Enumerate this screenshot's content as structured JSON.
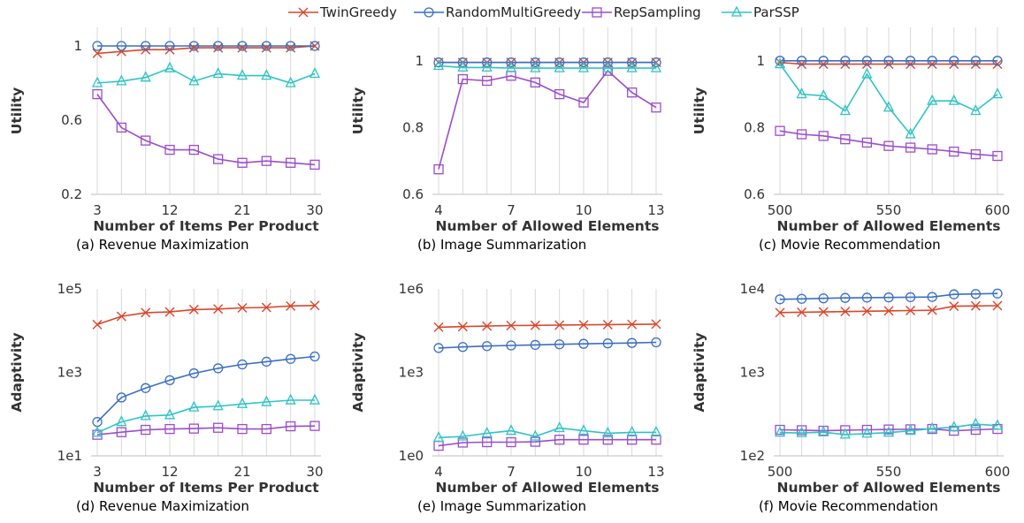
{
  "legend": {
    "position": "top-center",
    "entries": [
      {
        "name": "TwinGreedy",
        "color": "#d9472b",
        "marker": "x"
      },
      {
        "name": "RandomMultiGreedy",
        "color": "#3a6fc4",
        "marker": "circle"
      },
      {
        "name": "RepSampling",
        "color": "#9b4dca",
        "marker": "square"
      },
      {
        "name": "ParSSP",
        "color": "#2ec4c4",
        "marker": "triangle"
      }
    ]
  },
  "chart_data": [
    {
      "type": "line",
      "caption": "(a) Revenue Maximization",
      "xlabel": "Number of Items Per Product",
      "ylabel": "Utility",
      "x": [
        3,
        6,
        9,
        12,
        15,
        18,
        21,
        24,
        27,
        30
      ],
      "xticks": [
        3,
        12,
        21,
        30
      ],
      "xtick_labels": [
        "3",
        "12",
        "21",
        "30"
      ],
      "ylim": [
        0.2,
        1.1
      ],
      "yscale": "linear",
      "yticks": [
        0.2,
        0.6,
        1.0
      ],
      "ytick_labels": [
        "0.2",
        "0.6",
        "1"
      ],
      "grid": "vertical",
      "series": [
        {
          "name": "TwinGreedy",
          "values": [
            0.96,
            0.97,
            0.98,
            0.98,
            0.99,
            0.99,
            0.99,
            0.99,
            0.99,
            1.0
          ]
        },
        {
          "name": "RandomMultiGreedy",
          "values": [
            1.0,
            1.0,
            1.0,
            1.0,
            1.0,
            1.0,
            1.0,
            1.0,
            1.0,
            1.0
          ]
        },
        {
          "name": "RepSampling",
          "values": [
            0.74,
            0.56,
            0.49,
            0.44,
            0.44,
            0.39,
            0.37,
            0.38,
            0.37,
            0.36
          ]
        },
        {
          "name": "ParSSP",
          "values": [
            0.8,
            0.81,
            0.83,
            0.88,
            0.81,
            0.85,
            0.84,
            0.84,
            0.8,
            0.85
          ]
        }
      ]
    },
    {
      "type": "line",
      "caption": "(b) Image Summarization",
      "xlabel": "Number of Allowed Elements",
      "ylabel": "Utility",
      "x": [
        4,
        5,
        6,
        7,
        8,
        9,
        10,
        11,
        12,
        13
      ],
      "xticks": [
        4,
        7,
        10,
        13
      ],
      "xtick_labels": [
        "4",
        "7",
        "10",
        "13"
      ],
      "ylim": [
        0.6,
        1.1
      ],
      "yscale": "linear",
      "yticks": [
        0.6,
        0.8,
        1.0
      ],
      "ytick_labels": [
        "0.6",
        "0.8",
        "1"
      ],
      "grid": "vertical",
      "series": [
        {
          "name": "TwinGreedy",
          "values": [
            0.995,
            0.995,
            0.995,
            0.995,
            0.995,
            0.995,
            0.995,
            0.995,
            0.995,
            0.995
          ]
        },
        {
          "name": "RandomMultiGreedy",
          "values": [
            0.995,
            0.995,
            0.995,
            0.995,
            0.995,
            0.995,
            0.995,
            0.995,
            0.995,
            0.995
          ]
        },
        {
          "name": "RepSampling",
          "values": [
            0.675,
            0.945,
            0.94,
            0.955,
            0.935,
            0.9,
            0.875,
            0.97,
            0.905,
            0.86
          ]
        },
        {
          "name": "ParSSP",
          "values": [
            0.985,
            0.98,
            0.98,
            0.978,
            0.978,
            0.978,
            0.978,
            0.978,
            0.978,
            0.978
          ]
        }
      ]
    },
    {
      "type": "line",
      "caption": "(c) Movie Recommendation",
      "xlabel": "Number of Allowed Elements",
      "ylabel": "Utility",
      "x": [
        500,
        510,
        520,
        530,
        540,
        550,
        560,
        570,
        580,
        590,
        600
      ],
      "xticks": [
        500,
        550,
        600
      ],
      "xtick_labels": [
        "500",
        "550",
        "600"
      ],
      "ylim": [
        0.6,
        1.1
      ],
      "yscale": "linear",
      "yticks": [
        0.6,
        0.8,
        1.0
      ],
      "ytick_labels": [
        "0.6",
        "0.8",
        "1"
      ],
      "grid": "vertical",
      "series": [
        {
          "name": "TwinGreedy",
          "values": [
            0.995,
            0.99,
            0.99,
            0.99,
            0.99,
            0.99,
            0.99,
            0.99,
            0.99,
            0.99,
            0.99
          ]
        },
        {
          "name": "RandomMultiGreedy",
          "values": [
            1.0,
            1.0,
            1.0,
            1.0,
            1.0,
            1.0,
            1.0,
            1.0,
            1.0,
            1.0,
            1.0
          ]
        },
        {
          "name": "RepSampling",
          "values": [
            0.79,
            0.78,
            0.775,
            0.765,
            0.755,
            0.745,
            0.74,
            0.735,
            0.728,
            0.72,
            0.715
          ]
        },
        {
          "name": "ParSSP",
          "values": [
            0.99,
            0.9,
            0.895,
            0.85,
            0.96,
            0.86,
            0.78,
            0.88,
            0.88,
            0.85,
            0.9
          ]
        }
      ]
    },
    {
      "type": "line",
      "caption": "(d) Revenue Maximization",
      "xlabel": "Number of Items Per Product",
      "ylabel": "Adaptivity",
      "x": [
        3,
        6,
        9,
        12,
        15,
        18,
        21,
        24,
        27,
        30
      ],
      "xticks": [
        3,
        12,
        21,
        30
      ],
      "xtick_labels": [
        "3",
        "12",
        "21",
        "30"
      ],
      "ylim": [
        10,
        100000
      ],
      "yscale": "log",
      "yticks": [
        10,
        1000,
        100000
      ],
      "ytick_labels": [
        "1e1",
        "1e3",
        "1e5"
      ],
      "grid": "vertical",
      "series": [
        {
          "name": "TwinGreedy",
          "values": [
            14000,
            22000,
            27000,
            28000,
            32000,
            33000,
            35000,
            36000,
            39000,
            40000
          ]
        },
        {
          "name": "RandomMultiGreedy",
          "values": [
            65,
            250,
            420,
            650,
            950,
            1250,
            1550,
            1800,
            2100,
            2400
          ]
        },
        {
          "name": "RepSampling",
          "values": [
            32,
            37,
            42,
            44,
            45,
            47,
            44,
            44,
            51,
            52
          ]
        },
        {
          "name": "ParSSP",
          "values": [
            36,
            65,
            90,
            95,
            145,
            155,
            175,
            195,
            215,
            215
          ]
        }
      ]
    },
    {
      "type": "line",
      "caption": "(e) Image Summarization",
      "xlabel": "Number of Allowed Elements",
      "ylabel": "Adaptivity",
      "x": [
        4,
        5,
        6,
        7,
        8,
        9,
        10,
        11,
        12,
        13
      ],
      "xticks": [
        4,
        7,
        10,
        13
      ],
      "xtick_labels": [
        "4",
        "7",
        "10",
        "13"
      ],
      "ylim": [
        1,
        1000000
      ],
      "yscale": "log",
      "yticks": [
        1,
        1000,
        1000000
      ],
      "ytick_labels": [
        "1e0",
        "1e3",
        "1e6"
      ],
      "grid": "vertical",
      "series": [
        {
          "name": "TwinGreedy",
          "values": [
            42000,
            44000,
            46000,
            48000,
            49000,
            50000,
            51000,
            52000,
            53000,
            54000
          ]
        },
        {
          "name": "RandomMultiGreedy",
          "values": [
            7500,
            8200,
            8800,
            9300,
            9700,
            10200,
            10600,
            11000,
            11400,
            12000
          ]
        },
        {
          "name": "RepSampling",
          "values": [
            2.3,
            3.0,
            3.1,
            3.1,
            3.2,
            3.8,
            3.8,
            3.8,
            3.8,
            3.8
          ]
        },
        {
          "name": "ParSSP",
          "values": [
            4.5,
            5.0,
            6.5,
            8.0,
            5.0,
            10.0,
            8.0,
            6.5,
            7.0,
            7.0
          ]
        }
      ]
    },
    {
      "type": "line",
      "caption": "(f) Movie Recommendation",
      "xlabel": "Number of Allowed Elements",
      "ylabel": "Adaptivity",
      "x": [
        500,
        510,
        520,
        530,
        540,
        550,
        560,
        570,
        580,
        590,
        600
      ],
      "xticks": [
        500,
        550,
        600
      ],
      "xtick_labels": [
        "500",
        "550",
        "600"
      ],
      "ylim": [
        100,
        10000
      ],
      "yscale": "log",
      "yticks": [
        100,
        1000,
        10000
      ],
      "ytick_labels": [
        "1e2",
        "1e3",
        "1e4"
      ],
      "grid": "vertical",
      "series": [
        {
          "name": "TwinGreedy",
          "values": [
            5200,
            5250,
            5300,
            5350,
            5400,
            5450,
            5500,
            5550,
            6200,
            6250,
            6300
          ]
        },
        {
          "name": "RandomMultiGreedy",
          "values": [
            7500,
            7600,
            7700,
            7800,
            7850,
            7900,
            7950,
            8000,
            8600,
            8700,
            8800
          ]
        },
        {
          "name": "RepSampling",
          "values": [
            205,
            203,
            200,
            203,
            205,
            207,
            208,
            210,
            200,
            205,
            210
          ]
        },
        {
          "name": "ParSSP",
          "values": [
            190,
            188,
            192,
            180,
            185,
            190,
            200,
            212,
            220,
            240,
            230
          ]
        }
      ]
    }
  ]
}
